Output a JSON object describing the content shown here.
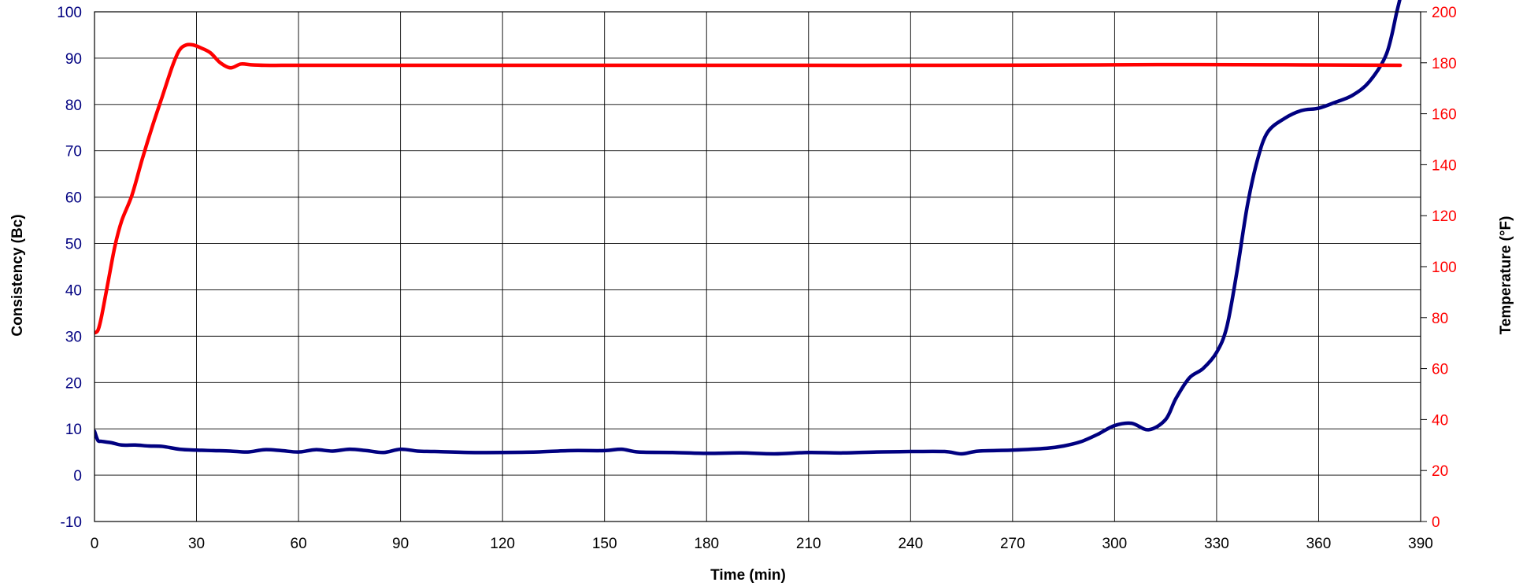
{
  "chart_data": {
    "type": "line",
    "xlabel": "Time (min)",
    "ylabel_left": "Consistency (Bc)",
    "ylabel_right": "Temperature (°F)",
    "xlim": [
      0,
      390
    ],
    "ylim_left": [
      -10,
      100
    ],
    "ylim_right": [
      0,
      200
    ],
    "x_ticks": [
      0,
      30,
      60,
      90,
      120,
      150,
      180,
      210,
      240,
      270,
      300,
      330,
      360,
      390
    ],
    "y_left_ticks": [
      -10,
      0,
      10,
      20,
      30,
      40,
      50,
      60,
      70,
      80,
      90,
      100
    ],
    "y_right_ticks": [
      0,
      20,
      40,
      60,
      80,
      100,
      120,
      140,
      160,
      180,
      200
    ],
    "grid": true,
    "colors": {
      "consistency": "#000080",
      "temperature": "#ff0000",
      "left_axis_labels": "#000080",
      "right_axis_labels": "#ff0000"
    },
    "series": [
      {
        "axis": "left",
        "color": "#000080",
        "x": [
          0,
          1,
          2,
          5,
          8,
          12,
          16,
          20,
          25,
          30,
          35,
          40,
          45,
          50,
          55,
          60,
          65,
          70,
          75,
          80,
          85,
          90,
          95,
          100,
          110,
          120,
          130,
          140,
          150,
          155,
          160,
          170,
          180,
          190,
          200,
          210,
          220,
          230,
          240,
          250,
          255,
          260,
          270,
          280,
          285,
          290,
          295,
          300,
          305,
          310,
          315,
          318,
          322,
          326,
          330,
          333,
          336,
          339,
          342,
          345,
          350,
          355,
          360,
          365,
          370,
          375,
          380,
          383,
          384
        ],
        "y": [
          9.5,
          7.5,
          7.3,
          7.0,
          6.5,
          6.5,
          6.3,
          6.2,
          5.6,
          5.4,
          5.3,
          5.2,
          5.0,
          5.5,
          5.3,
          5.0,
          5.5,
          5.2,
          5.6,
          5.3,
          4.9,
          5.6,
          5.2,
          5.1,
          4.9,
          4.9,
          5.0,
          5.3,
          5.3,
          5.6,
          5.0,
          4.9,
          4.7,
          4.8,
          4.6,
          4.9,
          4.8,
          5.0,
          5.1,
          5.1,
          4.6,
          5.2,
          5.4,
          5.8,
          6.3,
          7.2,
          8.8,
          10.7,
          11.2,
          9.8,
          12.0,
          16.5,
          21.0,
          23.0,
          26.5,
          32.0,
          44.0,
          58.0,
          68.0,
          74.0,
          77.0,
          78.7,
          79.2,
          80.5,
          82.0,
          85.0,
          91.0,
          100.0,
          103.0
        ]
      },
      {
        "axis": "right",
        "color": "#ff0000",
        "x": [
          0,
          1,
          2,
          4,
          6,
          8,
          11,
          14,
          17,
          20,
          23,
          25,
          27,
          29,
          31,
          34,
          37,
          40,
          43,
          46,
          50,
          55,
          60,
          100,
          150,
          200,
          250,
          300,
          320,
          350,
          384
        ],
        "y": [
          74,
          75,
          80,
          94,
          108,
          118,
          128,
          142,
          155,
          167,
          179,
          185,
          187,
          187,
          186,
          184,
          180,
          178,
          179.5,
          179.2,
          179,
          179,
          179,
          179,
          179,
          179,
          179,
          179.2,
          179.3,
          179.2,
          179
        ]
      }
    ]
  }
}
